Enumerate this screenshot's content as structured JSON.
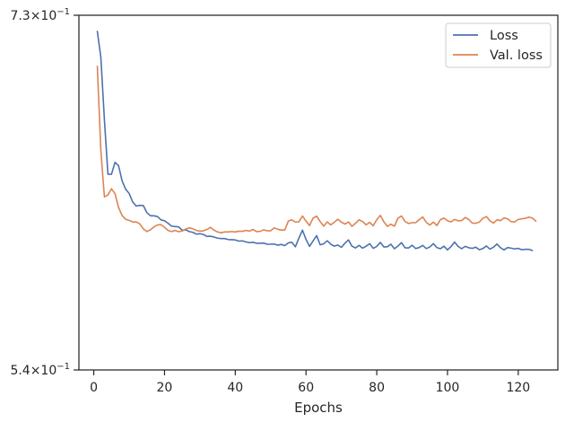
{
  "chart_data": {
    "type": "line",
    "title": "",
    "xlabel": "Epochs",
    "ylabel": "",
    "xlim": [
      -4.2,
      131.2
    ],
    "ylim": [
      0.54,
      0.73
    ],
    "yscale": "log",
    "xticks": [
      0,
      20,
      40,
      60,
      80,
      100,
      120
    ],
    "xtick_labels": [
      "0",
      "20",
      "40",
      "60",
      "80",
      "100",
      "120"
    ],
    "ytick_labels": [
      {
        "value": 0.73,
        "mantissa": "7.3",
        "base": "10",
        "exponent": "−1"
      },
      {
        "value": 0.54,
        "mantissa": "5.4",
        "base": "10",
        "exponent": "−1"
      }
    ],
    "grid": false,
    "legend_position": "top-right",
    "series": [
      {
        "name": "Loss",
        "color": "#4c72b0",
        "values": [
          0.7201,
          0.7044,
          0.6681,
          0.6377,
          0.6377,
          0.6442,
          0.6424,
          0.6342,
          0.6297,
          0.6274,
          0.6229,
          0.6207,
          0.6211,
          0.621,
          0.6173,
          0.6156,
          0.6156,
          0.6152,
          0.6135,
          0.613,
          0.6117,
          0.6102,
          0.61,
          0.6098,
          0.6081,
          0.6083,
          0.6074,
          0.607,
          0.6061,
          0.6063,
          0.6059,
          0.6049,
          0.605,
          0.6046,
          0.604,
          0.6038,
          0.6038,
          0.6033,
          0.6032,
          0.6031,
          0.6025,
          0.6026,
          0.6021,
          0.6017,
          0.6019,
          0.6014,
          0.6014,
          0.6015,
          0.6009,
          0.6009,
          0.601,
          0.6004,
          0.6008,
          0.6002,
          0.6016,
          0.6019,
          0.5996,
          0.6041,
          0.6081,
          0.6034,
          0.5998,
          0.6026,
          0.6053,
          0.6006,
          0.6011,
          0.6027,
          0.6009,
          0.5999,
          0.6005,
          0.5993,
          0.6014,
          0.6031,
          0.5999,
          0.599,
          0.6003,
          0.5989,
          0.5999,
          0.6012,
          0.5988,
          0.5998,
          0.6018,
          0.5995,
          0.5996,
          0.6009,
          0.5986,
          0.6,
          0.6017,
          0.5991,
          0.599,
          0.6004,
          0.5987,
          0.5992,
          0.6003,
          0.5987,
          0.5995,
          0.6012,
          0.5992,
          0.5986,
          0.5999,
          0.598,
          0.5997,
          0.602,
          0.5998,
          0.5986,
          0.5998,
          0.5991,
          0.5988,
          0.5994,
          0.5981,
          0.5987,
          0.6,
          0.5984,
          0.5994,
          0.601,
          0.5991,
          0.598,
          0.5992,
          0.5989,
          0.5985,
          0.5988,
          0.5981,
          0.5983,
          0.5983,
          0.5977
        ]
      },
      {
        "name": "Val. loss",
        "color": "#dd8452",
        "values": [
          0.699,
          0.6507,
          0.6256,
          0.6266,
          0.6299,
          0.6273,
          0.62,
          0.6158,
          0.6138,
          0.6132,
          0.6124,
          0.6124,
          0.6114,
          0.6088,
          0.6074,
          0.6083,
          0.6098,
          0.6108,
          0.611,
          0.6096,
          0.608,
          0.6074,
          0.608,
          0.6073,
          0.6077,
          0.6087,
          0.6093,
          0.6089,
          0.608,
          0.6076,
          0.6078,
          0.6085,
          0.6096,
          0.6081,
          0.6072,
          0.6068,
          0.6072,
          0.6072,
          0.6074,
          0.6072,
          0.6076,
          0.6075,
          0.608,
          0.6076,
          0.6085,
          0.6074,
          0.6075,
          0.6083,
          0.6078,
          0.6078,
          0.6093,
          0.6086,
          0.6082,
          0.6082,
          0.6128,
          0.6135,
          0.6123,
          0.6125,
          0.6155,
          0.6128,
          0.6105,
          0.6144,
          0.6154,
          0.6126,
          0.6102,
          0.6124,
          0.6109,
          0.6122,
          0.6138,
          0.6123,
          0.6113,
          0.6124,
          0.6101,
          0.6117,
          0.6135,
          0.6126,
          0.6109,
          0.6122,
          0.6104,
          0.6136,
          0.6158,
          0.6125,
          0.6101,
          0.6112,
          0.6102,
          0.6144,
          0.6155,
          0.6126,
          0.6116,
          0.612,
          0.612,
          0.6136,
          0.615,
          0.6122,
          0.6108,
          0.6123,
          0.6105,
          0.6136,
          0.6144,
          0.613,
          0.6124,
          0.6137,
          0.613,
          0.6131,
          0.6147,
          0.6137,
          0.6118,
          0.6117,
          0.6123,
          0.6143,
          0.6152,
          0.613,
          0.6118,
          0.6135,
          0.6131,
          0.6145,
          0.614,
          0.6125,
          0.6124,
          0.6137,
          0.614,
          0.6143,
          0.6149,
          0.6144,
          0.6128
        ]
      }
    ]
  }
}
